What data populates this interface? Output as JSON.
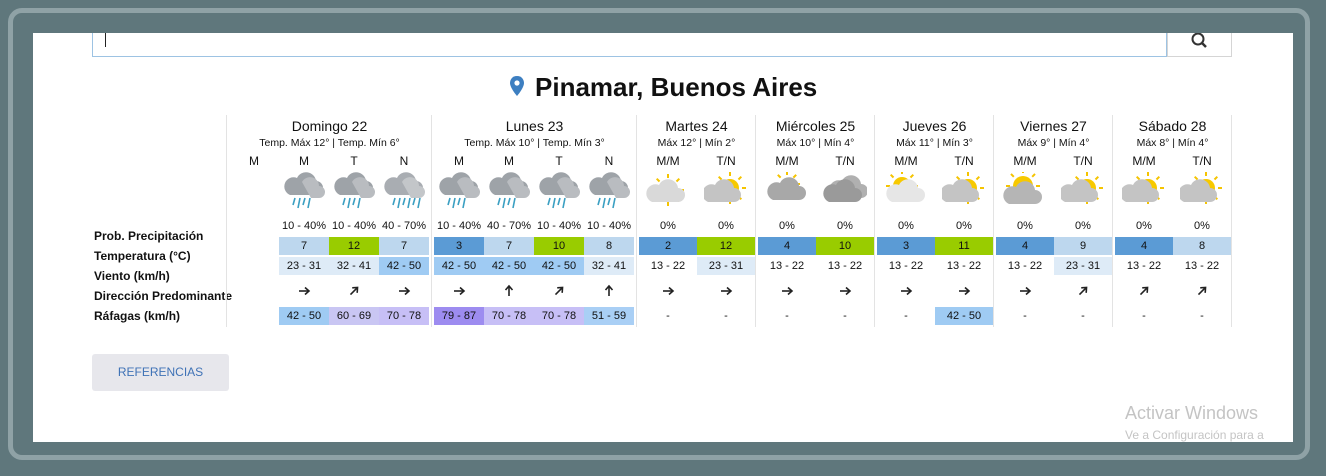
{
  "title": "Pinamar, Buenos Aires",
  "row_labels": [
    "Prob. Precipitación",
    "Temperatura (°C)",
    "Viento (km/h)",
    "Dirección Predominante",
    "Ráfagas (km/h)"
  ],
  "days": [
    {
      "name": "Domingo 22",
      "summary": "Temp. Máx 12° | Temp. Mín 6°",
      "periods": [
        {
          "label": "M"
        },
        {
          "label": "M",
          "precip": "10 - 40%",
          "temp": "7",
          "temp_color": "#bdd7ee",
          "wind": "23 - 31",
          "wind_color": "#deebf7",
          "gust": "42 - 50",
          "gust_color": "#9fcbf3"
        },
        {
          "label": "T",
          "precip": "10 - 40%",
          "temp": "12",
          "temp_color": "#99cc00",
          "wind": "32 - 41",
          "wind_color": "#deebf7",
          "gust": "60 - 69",
          "gust_color": "#c9c6f3"
        },
        {
          "label": "N",
          "precip": "40 - 70%",
          "temp": "7",
          "temp_color": "#bdd7ee",
          "wind": "42 - 50",
          "wind_color": "#9fcbf3",
          "gust": "70 - 78",
          "gust_color": "#c7bff6"
        }
      ]
    },
    {
      "name": "Lunes 23",
      "summary": "Temp. Máx 10° | Temp. Mín 3°",
      "periods": [
        {
          "label": "M",
          "precip": "10 - 40%",
          "temp": "3",
          "temp_color": "#5b9bd5",
          "wind": "42 - 50",
          "wind_color": "#9fcbf3",
          "gust": "79 - 87",
          "gust_color": "#9d8cf0"
        },
        {
          "label": "M",
          "precip": "40 - 70%",
          "temp": "7",
          "temp_color": "#bdd7ee",
          "wind": "42 - 50",
          "wind_color": "#9fcbf3",
          "gust": "70 - 78",
          "gust_color": "#c7bff6"
        },
        {
          "label": "T",
          "precip": "10 - 40%",
          "temp": "10",
          "temp_color": "#99cc00",
          "wind": "42 - 50",
          "wind_color": "#9fcbf3",
          "gust": "70 - 78",
          "gust_color": "#c7bff6"
        },
        {
          "label": "N",
          "precip": "10 - 40%",
          "temp": "8",
          "temp_color": "#bdd7ee",
          "wind": "32 - 41",
          "wind_color": "#deebf7",
          "gust": "51 - 59",
          "gust_color": "#a9cff5"
        }
      ]
    },
    {
      "name": "Martes 24",
      "summary": "Máx 12° | Mín 2°",
      "periods": [
        {
          "label": "M/M",
          "precip": "0%",
          "temp": "2",
          "temp_color": "#5b9bd5",
          "wind": "13 - 22",
          "gust": "-"
        },
        {
          "label": "T/N",
          "precip": "0%",
          "temp": "12",
          "temp_color": "#99cc00",
          "wind": "23 - 31",
          "wind_color": "#deebf7",
          "gust": "-"
        }
      ]
    },
    {
      "name": "Miércoles 25",
      "summary": "Máx 10° | Mín 4°",
      "periods": [
        {
          "label": "M/M",
          "precip": "0%",
          "temp": "4",
          "temp_color": "#5b9bd5",
          "wind": "13 - 22",
          "gust": "-"
        },
        {
          "label": "T/N",
          "precip": "0%",
          "temp": "10",
          "temp_color": "#99cc00",
          "wind": "13 - 22",
          "gust": "-"
        }
      ]
    },
    {
      "name": "Jueves 26",
      "summary": "Máx 11° | Mín 3°",
      "periods": [
        {
          "label": "M/M",
          "precip": "0%",
          "temp": "3",
          "temp_color": "#5b9bd5",
          "wind": "13 - 22",
          "gust": "-"
        },
        {
          "label": "T/N",
          "precip": "0%",
          "temp": "11",
          "temp_color": "#99cc00",
          "wind": "13 - 22",
          "gust": "42 - 50",
          "gust_color": "#9fcbf3"
        }
      ]
    },
    {
      "name": "Viernes 27",
      "summary": "Máx 9° | Mín 4°",
      "periods": [
        {
          "label": "M/M",
          "precip": "0%",
          "temp": "4",
          "temp_color": "#5b9bd5",
          "wind": "13 - 22",
          "gust": "-"
        },
        {
          "label": "T/N",
          "precip": "0%",
          "temp": "9",
          "temp_color": "#bdd7ee",
          "wind": "23 - 31",
          "wind_color": "#deebf7",
          "gust": "-"
        }
      ]
    },
    {
      "name": "Sábado 28",
      "summary": "Máx 8° | Mín 4°",
      "periods": [
        {
          "label": "M/M",
          "precip": "0%",
          "temp": "4",
          "temp_color": "#5b9bd5",
          "wind": "13 - 22",
          "gust": "-"
        },
        {
          "label": "T/N",
          "precip": "0%",
          "temp": "8",
          "temp_color": "#bdd7ee",
          "wind": "13 - 22",
          "gust": "-"
        }
      ]
    }
  ],
  "references_button": "REFERENCIAS",
  "watermark": [
    "Activar Windows",
    "Ve a Configuración para a"
  ]
}
